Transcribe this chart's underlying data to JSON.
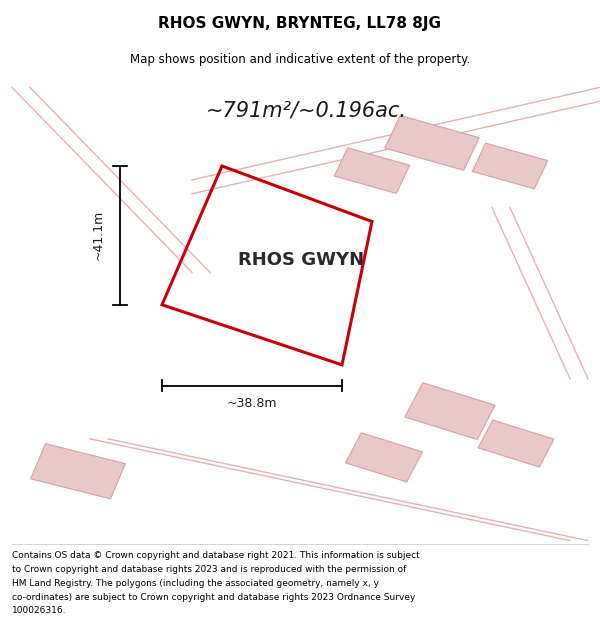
{
  "title": "RHOS GWYN, BRYNTEG, LL78 8JG",
  "subtitle": "Map shows position and indicative extent of the property.",
  "area_text": "~791m²/~0.196ac.",
  "property_label": "RHOS GWYN",
  "dim_h": "~38.8m",
  "dim_v": "~41.1m",
  "footer_lines": [
    "Contains OS data © Crown copyright and database right 2021. This information is subject",
    "to Crown copyright and database rights 2023 and is reproduced with the permission of",
    "HM Land Registry. The polygons (including the associated geometry, namely x, y",
    "co-ordinates) are subject to Crown copyright and database rights 2023 Ordnance Survey",
    "100026316."
  ],
  "map_bg": "#f7f2f2",
  "polygon_color": "#cc0000",
  "road_color": "#e8b0b0",
  "building_color": "#e8c8c8",
  "building_edge": "#d8a0a0",
  "title_color": "#000000",
  "footer_color": "#000000"
}
